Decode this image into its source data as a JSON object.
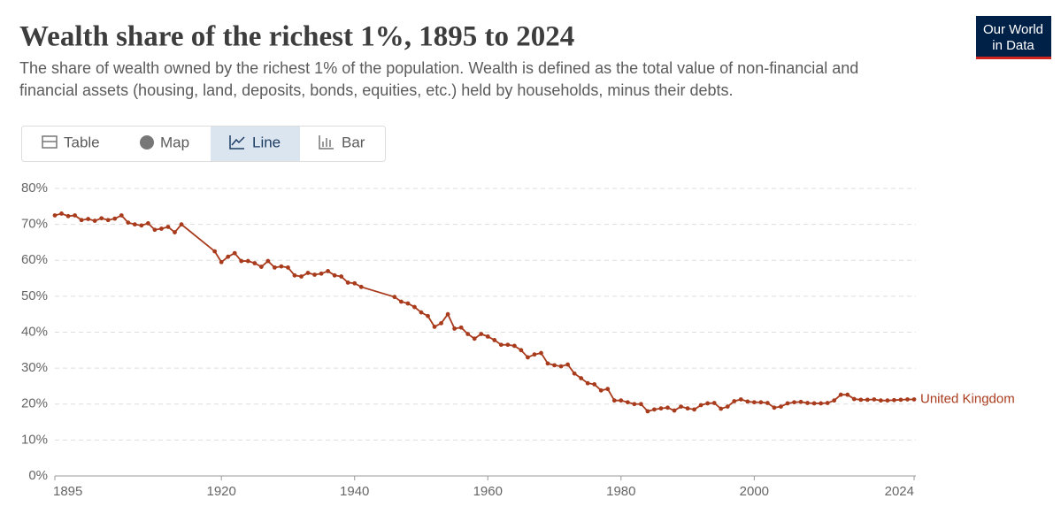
{
  "chart_data": {
    "type": "line",
    "title": "Wealth share of the richest 1%, 1895 to 2024",
    "subtitle": [
      "The share of wealth owned by the richest 1% of the population. Wealth is defined as the total value of non-financial and",
      "financial assets (housing, land, deposits, bonds, equities, etc.) held by households, minus their debts."
    ],
    "x": [
      1895,
      1896,
      1897,
      1898,
      1899,
      1900,
      1901,
      1902,
      1903,
      1904,
      1905,
      1906,
      1907,
      1908,
      1909,
      1910,
      1911,
      1912,
      1913,
      1914,
      1919,
      1920,
      1921,
      1922,
      1923,
      1924,
      1925,
      1926,
      1927,
      1928,
      1929,
      1930,
      1931,
      1932,
      1933,
      1934,
      1935,
      1936,
      1937,
      1938,
      1939,
      1940,
      1941,
      1946,
      1947,
      1948,
      1949,
      1950,
      1951,
      1952,
      1953,
      1954,
      1955,
      1956,
      1957,
      1958,
      1959,
      1960,
      1961,
      1962,
      1963,
      1964,
      1965,
      1966,
      1967,
      1968,
      1969,
      1970,
      1971,
      1972,
      1973,
      1974,
      1975,
      1976,
      1977,
      1978,
      1979,
      1980,
      1981,
      1982,
      1983,
      1984,
      1985,
      1986,
      1987,
      1988,
      1989,
      1990,
      1991,
      1992,
      1993,
      1994,
      1995,
      1996,
      1997,
      1998,
      1999,
      2000,
      2001,
      2002,
      2003,
      2004,
      2005,
      2006,
      2007,
      2008,
      2009,
      2010,
      2011,
      2012,
      2013,
      2014,
      2015,
      2016,
      2017,
      2018,
      2019,
      2020,
      2021,
      2022,
      2023,
      2024
    ],
    "series": [
      {
        "name": "United Kingdom",
        "color": "#a93b1d",
        "values": [
          72.5,
          73,
          72.3,
          72.5,
          71.2,
          71.5,
          71,
          71.7,
          71.2,
          71.6,
          72.5,
          70.5,
          70,
          69.7,
          70.3,
          68.5,
          68.8,
          69.3,
          67.8,
          70,
          62.5,
          59.5,
          61,
          62,
          59.8,
          59.8,
          59.2,
          58.2,
          59.8,
          58,
          58.3,
          58,
          55.8,
          55.5,
          56.5,
          56,
          56.3,
          57,
          55.8,
          55.5,
          53.8,
          53.6,
          52.6,
          49.8,
          48.5,
          48,
          47,
          45.5,
          44.5,
          41.5,
          42.5,
          45,
          41,
          41.3,
          39.5,
          38.2,
          39.5,
          38.8,
          37.8,
          36.5,
          36.5,
          36.2,
          35,
          33,
          33.8,
          34.2,
          31.3,
          30.8,
          30.5,
          31,
          28.5,
          27.2,
          25.8,
          25.5,
          23.8,
          24.2,
          21,
          21,
          20.5,
          20,
          20,
          18,
          18.5,
          18.8,
          19,
          18.2,
          19.3,
          18.8,
          18.5,
          19.7,
          20.2,
          20.3,
          18.7,
          19.3,
          20.8,
          21.3,
          20.7,
          20.5,
          20.5,
          20.3,
          19,
          19.3,
          20.2,
          20.5,
          20.6,
          20.3,
          20.2,
          20.2,
          20.3,
          21,
          22.6,
          22.6,
          21.4,
          21.2,
          21.2,
          21.3,
          21,
          21,
          21.1,
          21.2,
          21.3,
          21.3
        ]
      }
    ],
    "xlim": [
      1895,
      2024
    ],
    "xticks": [
      1895,
      1920,
      1940,
      1960,
      1980,
      2000,
      2024
    ],
    "ylim": [
      0,
      80
    ],
    "yticks": [
      {
        "value": 0,
        "label": "0%"
      },
      {
        "value": 10,
        "label": "10%"
      },
      {
        "value": 20,
        "label": "20%"
      },
      {
        "value": 30,
        "label": "30%"
      },
      {
        "value": 40,
        "label": "40%"
      },
      {
        "value": 50,
        "label": "50%"
      },
      {
        "value": 60,
        "label": "60%"
      },
      {
        "value": 70,
        "label": "70%"
      },
      {
        "value": 80,
        "label": "80%"
      }
    ],
    "grid": true
  },
  "tabs": [
    "Table",
    "Map",
    "Line",
    "Bar"
  ],
  "logo": [
    "Our World",
    "in Data"
  ]
}
